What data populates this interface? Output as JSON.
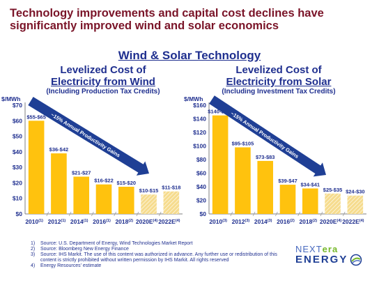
{
  "title": "Technology improvements and capital cost declines have significantly improved wind and solar economics",
  "section_title": "Wind & Solar Technology",
  "charts": [
    {
      "head1": "Levelized Cost of",
      "head2": "Electricity from Wind",
      "sub": "(Including Production Tax Credits)"
    },
    {
      "head1": "Levelized Cost of",
      "head2": "Electricity from Solar",
      "sub": "(Including Investment Tax Credits)"
    }
  ],
  "chart_data": [
    {
      "type": "bar",
      "title": "Levelized Cost of Electricity from Wind",
      "subtitle": "(Including Production Tax Credits)",
      "ylabel": "$/MWh",
      "ylim": [
        0,
        70
      ],
      "yticks": [
        "$0",
        "$10",
        "$20",
        "$30",
        "$40",
        "$50",
        "$60",
        "$70"
      ],
      "categories": [
        "2010",
        "2012",
        "2014",
        "2016",
        "2018",
        "2020E",
        "2022E"
      ],
      "category_notes": [
        "(1)",
        "(1)",
        "(1)",
        "(1)",
        "(2)",
        "(4)",
        "(4)"
      ],
      "values": [
        60,
        39,
        24,
        19,
        17.5,
        12.5,
        14.5
      ],
      "data_labels": [
        "$55-$65",
        "$36-$42",
        "$21-$27",
        "$16-$22",
        "$15-$20",
        "$10-$15",
        "$11-$18"
      ],
      "estimate": [
        false,
        false,
        false,
        false,
        false,
        true,
        true
      ],
      "annotation": "~15% Annual Productivity Gains",
      "colors": {
        "bar": "#ffc20e",
        "estimate": "#f6dc8e",
        "arrow": "#1f3f95",
        "text": "#1f2f8f"
      }
    },
    {
      "type": "bar",
      "title": "Levelized Cost of Electricity from Solar",
      "subtitle": "(Including Investment Tax Credits)",
      "ylabel": "$/MWh",
      "ylim": [
        0,
        160
      ],
      "yticks": [
        "$0",
        "$20",
        "$40",
        "$60",
        "$80",
        "$100",
        "$120",
        "$140",
        "$160"
      ],
      "categories": [
        "2010",
        "2012",
        "2014",
        "2016",
        "2018",
        "2020E",
        "2022E"
      ],
      "category_notes": [
        "(3)",
        "(3)",
        "(3)",
        "(2)",
        "(2)",
        "(4)",
        "(4)"
      ],
      "values": [
        145,
        98,
        78,
        43,
        37.5,
        30,
        27
      ],
      "data_labels": [
        "$140-$150",
        "$95-$105",
        "$73-$83",
        "$39-$47",
        "$34-$41",
        "$25-$35",
        "$24-$30"
      ],
      "estimate": [
        false,
        false,
        false,
        false,
        false,
        true,
        true
      ],
      "annotation": "~15% Annual Productivity Gains",
      "colors": {
        "bar": "#ffc20e",
        "estimate": "#f6dc8e",
        "arrow": "#1f3f95",
        "text": "#1f2f8f"
      }
    }
  ],
  "footnotes": [
    {
      "num": "1)",
      "text": "Source: U.S. Department of Energy, Wind Technologies Market Report"
    },
    {
      "num": "2)",
      "text": "Source: Bloomberg New Energy Finance"
    },
    {
      "num": "3)",
      "text": "Source: IHS Markit. The use of this content was authorized in advance. Any further use or redistribution of this content is strictly prohibited without written permission by IHS Markit. All rights reserved"
    },
    {
      "num": "4)",
      "text": "Energy Resources' estimate"
    }
  ],
  "logo": {
    "part1": "NEXT",
    "part2": "era",
    "part3": "ENERGY"
  }
}
